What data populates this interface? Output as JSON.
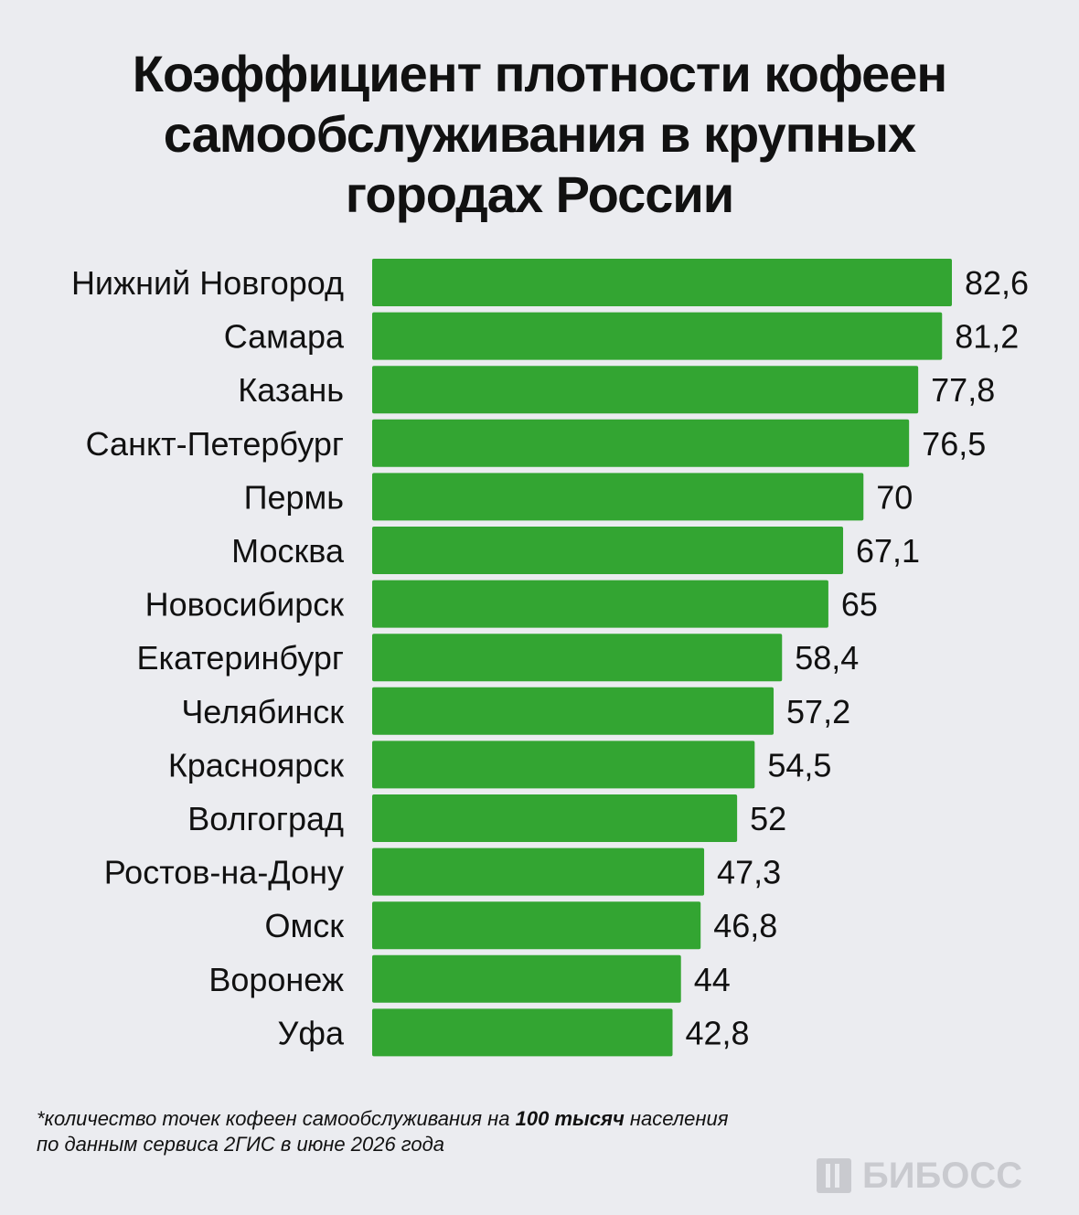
{
  "title_lines": [
    "Коэффициент плотности кофеен",
    "самообслуживания в крупных",
    "городах России"
  ],
  "footnote": {
    "line1_prefix": "*количество точек кофеен самообслуживания на ",
    "line1_bold": "100 тысяч",
    "line1_suffix": " населения",
    "line2": "по данным сервиса 2ГИС в июне 2026 года"
  },
  "logo_text": "БИБОСС",
  "colors": {
    "bar": "#33a532",
    "background": "#ebecf0",
    "text": "#111111"
  },
  "chart_data": {
    "type": "bar",
    "orientation": "horizontal",
    "categories": [
      "Нижний Новгород",
      "Самара",
      "Казань",
      "Санкт-Петербург",
      "Пермь",
      "Москва",
      "Новосибирск",
      "Екатеринбург",
      "Челябинск",
      "Красноярск",
      "Волгоград",
      "Ростов-на-Дону",
      "Омск",
      "Воронеж",
      "Уфа"
    ],
    "values": [
      82.6,
      81.2,
      77.8,
      76.5,
      70,
      67.1,
      65,
      58.4,
      57.2,
      54.5,
      52,
      47.3,
      46.8,
      44,
      42.8
    ],
    "value_labels": [
      "82,6",
      "81,2",
      "77,8",
      "76,5",
      "70",
      "67,1",
      "65",
      "58,4",
      "57,2",
      "54,5",
      "52",
      "47,3",
      "46,8",
      "44",
      "42,8"
    ],
    "xlim": [
      0,
      82.6
    ],
    "grid": false,
    "legend": "none"
  }
}
